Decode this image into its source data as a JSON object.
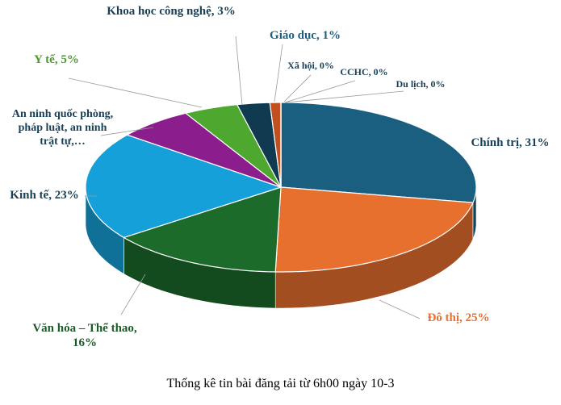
{
  "chart_data": {
    "type": "pie",
    "title": "Thống kê tin bài đăng tải từ 6h00 ngày 10-3",
    "labels": [
      "Chính trị, 31%",
      "Đô thị, 25%",
      "Văn hóa – Thể thao, 16%",
      "Kinh tế, 23%",
      "An ninh quốc phòng, pháp luật, an ninh trật tự,…",
      "Y tế, 5%",
      "Khoa học công nghệ, 3%",
      "Giáo dục, 1%",
      "Xã hội, 0%",
      "CCHC, 0%",
      "Du lịch, 0%"
    ],
    "values": [
      31,
      25,
      16,
      23,
      7,
      5,
      3,
      1,
      0,
      0,
      0
    ],
    "colors": [
      "#1b5f80",
      "#e8702f",
      "#1d6b2b",
      "#16a0d9",
      "#8c1d8c",
      "#4ea72e",
      "#0f3a4f",
      "#c05020",
      "#9a9a9a",
      "#7a7a7a",
      "#5a5a5a"
    ]
  }
}
